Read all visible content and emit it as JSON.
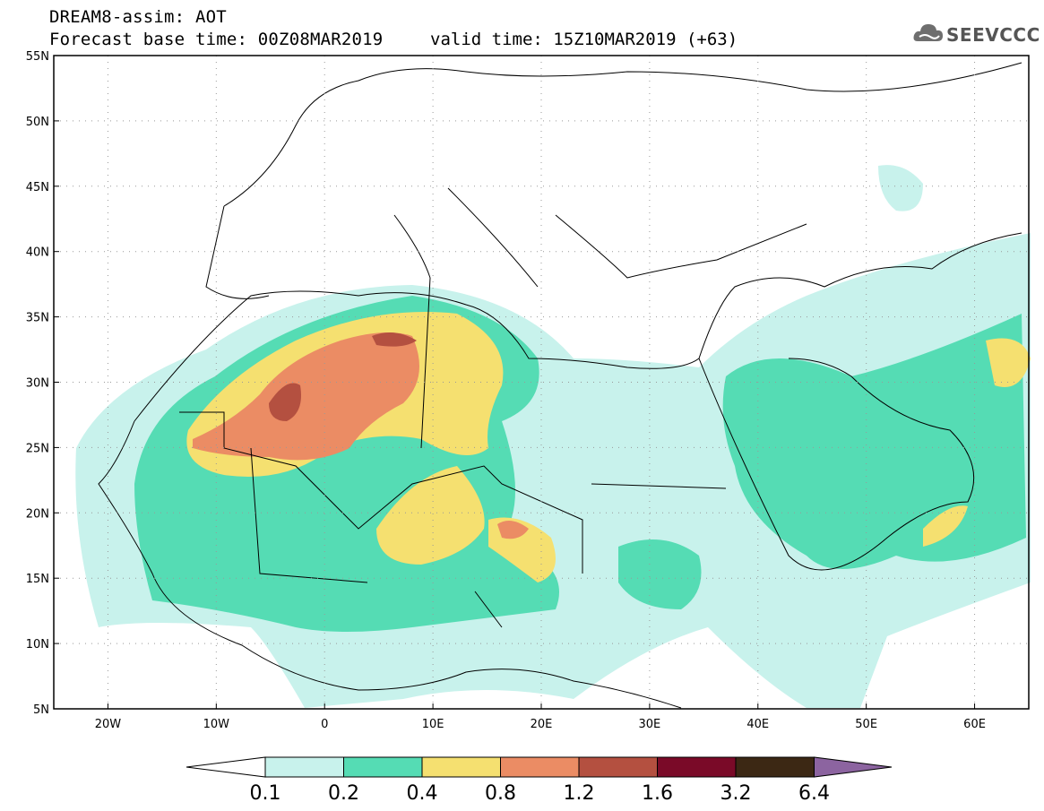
{
  "header": {
    "title": "DREAM8-assim: AOT",
    "base_time": "Forecast base time: 00Z08MAR2019",
    "valid_time": "valid time: 15Z10MAR2019 (+63)"
  },
  "logo": {
    "text": "SEEVCCC",
    "icon": "cloud-icon"
  },
  "map": {
    "lat_labels": [
      "55N",
      "50N",
      "45N",
      "40N",
      "35N",
      "30N",
      "25N",
      "20N",
      "15N",
      "10N",
      "5N"
    ],
    "lon_labels": [
      "20W",
      "10W",
      "0",
      "10E",
      "20E",
      "30E",
      "40E",
      "50E",
      "60E"
    ],
    "lat_values": [
      55,
      50,
      45,
      40,
      35,
      30,
      25,
      20,
      15,
      10,
      5
    ],
    "lon_values": [
      -20,
      -10,
      0,
      10,
      20,
      30,
      40,
      50,
      60
    ],
    "lon_range": [
      -25,
      65
    ],
    "lat_range": [
      5,
      55
    ],
    "grid": "dotted"
  },
  "colorbar": {
    "labels": [
      "0.1",
      "0.2",
      "0.4",
      "0.8",
      "1.2",
      "1.6",
      "3.2",
      "6.4"
    ],
    "colors": [
      "#c8f2ec",
      "#55dcb4",
      "#f5e070",
      "#eb8c64",
      "#b45040",
      "#7a0a28",
      "#3c2814",
      "#8c64a0"
    ]
  }
}
